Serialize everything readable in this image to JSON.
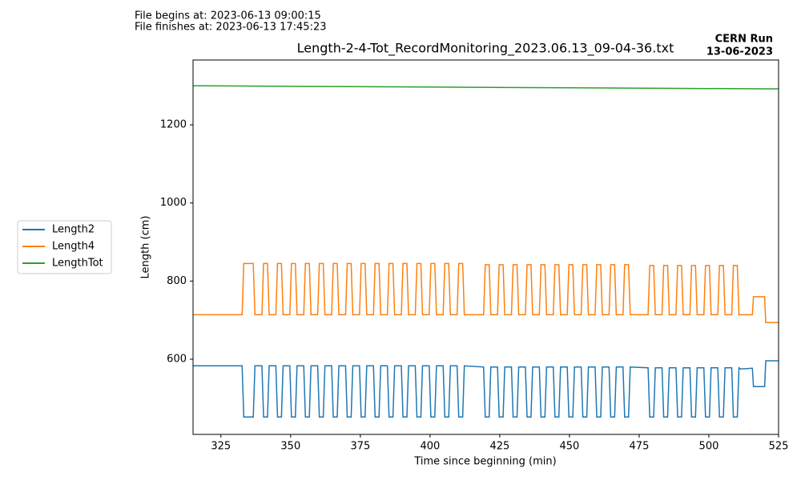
{
  "chart_data": {
    "type": "line",
    "title": "Length-2-4-Tot_RecordMonitoring_2023.06.13_09-04-36.txt",
    "annotations": [
      "File begins at: 2023-06-13 09:00:15",
      "File finishes at: 2023-06-13 17:45:23",
      "CERN Run",
      "13-06-2023"
    ],
    "xlabel": "Time since beginning (min)",
    "ylabel": "Length (cm)",
    "xlim": [
      315,
      525
    ],
    "xticks": [
      325,
      350,
      375,
      400,
      425,
      450,
      475,
      500,
      525
    ],
    "ylim": [
      407.5,
      1366
    ],
    "yticks": [
      600,
      800,
      1000,
      1200
    ],
    "grid": false,
    "legend": "left",
    "x": [
      315,
      332.6,
      333.2,
      336.6,
      337.2,
      339.7,
      340.3,
      341.7,
      342.3,
      344.7,
      345.3,
      346.7,
      347.3,
      349.7,
      350.3,
      351.7,
      352.3,
      354.7,
      355.3,
      356.7,
      357.3,
      359.7,
      360.3,
      361.7,
      362.3,
      364.7,
      365.3,
      366.7,
      367.3,
      369.7,
      370.3,
      371.7,
      372.3,
      374.7,
      375.3,
      376.7,
      377.3,
      379.7,
      380.3,
      381.7,
      382.3,
      384.7,
      385.3,
      386.7,
      387.3,
      389.7,
      390.3,
      391.7,
      392.3,
      394.7,
      395.3,
      396.7,
      397.3,
      399.7,
      400.3,
      401.7,
      402.3,
      404.7,
      405.3,
      406.7,
      407.3,
      409.7,
      410.3,
      411.7,
      412.3,
      419.2,
      419.8,
      421.2,
      421.8,
      424.2,
      424.8,
      426.2,
      426.8,
      429.2,
      429.8,
      431.2,
      431.8,
      434.2,
      434.8,
      436.2,
      436.8,
      439.2,
      439.8,
      441.2,
      441.8,
      444.2,
      444.8,
      446.2,
      446.8,
      449.2,
      449.8,
      451.2,
      451.8,
      454.2,
      454.8,
      456.2,
      456.8,
      459.2,
      459.8,
      461.2,
      461.8,
      464.2,
      464.8,
      466.2,
      466.8,
      469.2,
      469.8,
      471.2,
      471.8,
      478.2,
      478.8,
      480.2,
      480.8,
      483.2,
      483.8,
      485.2,
      485.8,
      488.2,
      488.8,
      490.2,
      490.8,
      493.2,
      493.8,
      495.2,
      495.8,
      498.2,
      498.8,
      500.2,
      500.8,
      503.2,
      503.8,
      505.2,
      505.8,
      508.2,
      508.8,
      510.2,
      510.8,
      511.4,
      515.6,
      516,
      520,
      520.4,
      525
    ],
    "series": [
      {
        "name": "Length2",
        "color": "#1f77b4",
        "values": [
          583,
          583,
          452,
          452,
          583,
          583,
          452,
          452,
          583,
          583,
          452,
          452,
          583,
          583,
          452,
          452,
          583,
          583,
          452,
          452,
          583,
          583,
          452,
          452,
          583,
          583,
          452,
          452,
          583,
          583,
          452,
          452,
          583,
          583,
          452,
          452,
          583,
          583,
          452,
          452,
          583,
          583,
          452,
          452,
          583,
          583,
          452,
          452,
          583,
          583,
          452,
          452,
          583,
          583,
          452,
          452,
          583,
          583,
          452,
          452,
          583,
          583,
          452,
          452,
          583,
          580,
          452,
          452,
          580,
          580,
          452,
          452,
          580,
          580,
          452,
          452,
          580,
          580,
          452,
          452,
          580,
          580,
          452,
          452,
          580,
          580,
          452,
          452,
          580,
          580,
          452,
          452,
          580,
          580,
          452,
          452,
          580,
          580,
          452,
          452,
          580,
          580,
          452,
          452,
          580,
          580,
          452,
          452,
          580,
          578,
          452,
          452,
          578,
          578,
          452,
          452,
          578,
          578,
          452,
          452,
          578,
          578,
          452,
          452,
          578,
          578,
          452,
          452,
          578,
          578,
          452,
          452,
          578,
          578,
          452,
          452,
          578,
          575,
          577,
          530,
          530,
          596,
          596
        ]
      },
      {
        "name": "Length4",
        "color": "#ff7f0e",
        "values": [
          714,
          714,
          845,
          845,
          714,
          714,
          845,
          845,
          714,
          714,
          845,
          845,
          714,
          714,
          845,
          845,
          714,
          714,
          845,
          845,
          714,
          714,
          845,
          845,
          714,
          714,
          845,
          845,
          714,
          714,
          845,
          845,
          714,
          714,
          845,
          845,
          714,
          714,
          845,
          845,
          714,
          714,
          845,
          845,
          714,
          714,
          845,
          845,
          714,
          714,
          845,
          845,
          714,
          714,
          845,
          845,
          714,
          714,
          845,
          845,
          714,
          714,
          845,
          845,
          714,
          714,
          842,
          842,
          714,
          714,
          842,
          842,
          714,
          714,
          842,
          842,
          714,
          714,
          842,
          842,
          714,
          714,
          842,
          842,
          714,
          714,
          842,
          842,
          714,
          714,
          842,
          842,
          714,
          714,
          842,
          842,
          714,
          714,
          842,
          842,
          714,
          714,
          842,
          842,
          714,
          714,
          842,
          842,
          714,
          714,
          840,
          840,
          714,
          714,
          840,
          840,
          714,
          714,
          840,
          840,
          714,
          714,
          840,
          840,
          714,
          714,
          840,
          840,
          714,
          714,
          840,
          840,
          714,
          714,
          840,
          840,
          714,
          714,
          714,
          760,
          760,
          694,
          694
        ]
      },
      {
        "name": "LengthTot",
        "color": "#2ca02c",
        "x": [
          315,
          525
        ],
        "values": [
          1300,
          1292
        ]
      }
    ]
  }
}
